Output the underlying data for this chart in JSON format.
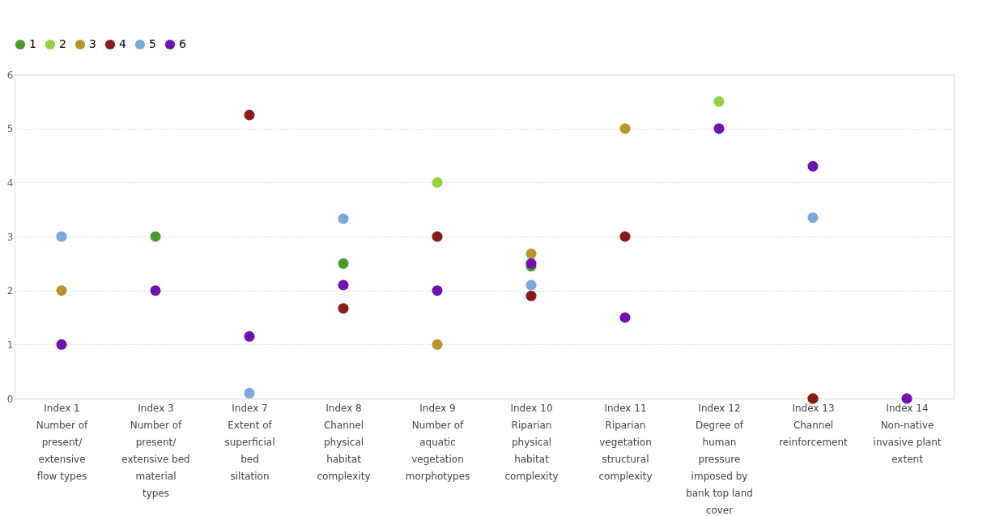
{
  "chart_data": {
    "type": "scatter",
    "marker": "circle",
    "legend": "top left",
    "grid": "y",
    "categories": [
      "Index 1\nNumber of\npresent/\nextensive\nflow types",
      "Index 3\nNumber of\npresent/\nextensive bed\nmaterial\ntypes",
      "Index 7\nExtent of\nsuperficial\nbed\nsiltation",
      "Index 8\nChannel\nphysical\nhabitat\ncomplexity",
      "Index 9\nNumber of\naquatic\nvegetation\nmorphotypes",
      "Index 10\nRiparian\nphysical\nhabitat\ncomplexity",
      "Index 11\nRiparian\nvegetation\nstructural\ncomplexity",
      "Index 12\nDegree of\nhuman\npressure\nimposed by\nbank top land\ncover",
      "Index 13\nChannel\nreinforcement",
      "Index 14\nNon-native\ninvasive plant\nextent"
    ],
    "ylim": [
      0,
      6
    ],
    "yticks": [
      0,
      1,
      2,
      3,
      4,
      5,
      6
    ],
    "series": [
      {
        "name": "1",
        "color": "#4a9a2a",
        "values": [
          null,
          3,
          null,
          2.5,
          null,
          2.45,
          null,
          null,
          null,
          null
        ]
      },
      {
        "name": "2",
        "color": "#8fd43c",
        "values": [
          null,
          null,
          null,
          null,
          4,
          null,
          null,
          5.5,
          null,
          null
        ]
      },
      {
        "name": "3",
        "color": "#b8962a",
        "values": [
          2,
          null,
          null,
          null,
          1,
          2.68,
          5,
          null,
          0,
          null
        ]
      },
      {
        "name": "4",
        "color": "#8b1a1a",
        "values": [
          null,
          null,
          5.25,
          1.67,
          3,
          1.9,
          3,
          null,
          0,
          null
        ]
      },
      {
        "name": "5",
        "color": "#7ba7dc",
        "values": [
          3,
          null,
          0.1,
          3.33,
          null,
          2.1,
          null,
          null,
          3.35,
          null
        ]
      },
      {
        "name": "6",
        "color": "#7010b0",
        "values": [
          1,
          2,
          1.15,
          2.1,
          2,
          2.5,
          1.5,
          5,
          4.3,
          0
        ]
      }
    ]
  }
}
